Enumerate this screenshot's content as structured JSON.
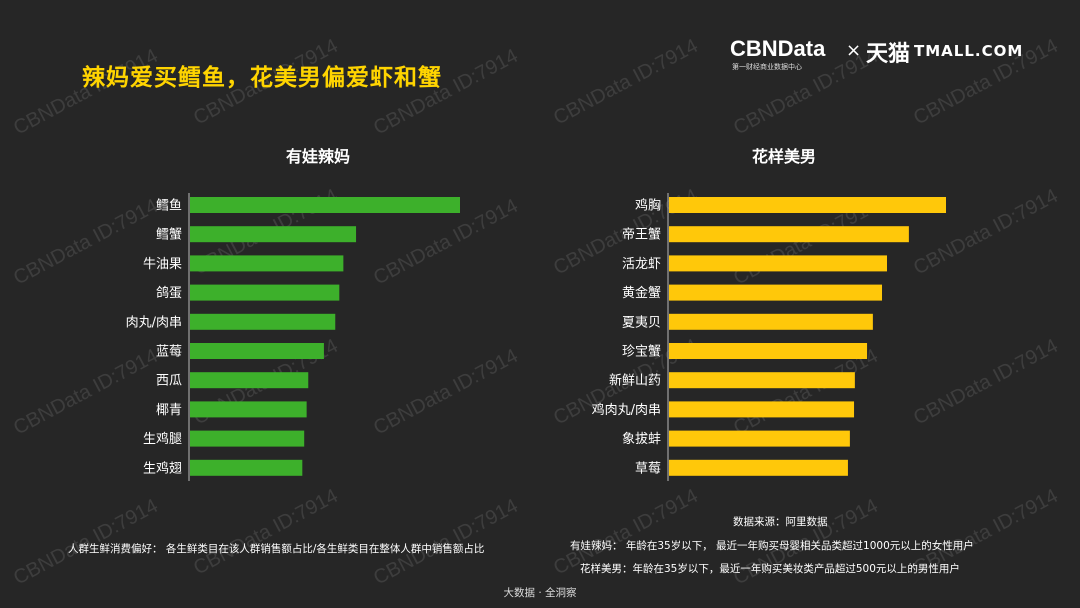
{
  "title": "辣妈爱买鳕鱼，花美男偏爱虾和蟹",
  "brand": {
    "cbn": "CBNData",
    "cbn_sub": "第一财经商业数据中心",
    "times": "×",
    "tmall_cn": "天猫",
    "tmall_en": "TMALL.COM"
  },
  "watermark_text": "CBNData ID:7914",
  "colors": {
    "mom_bar": "#3db02b",
    "man_bar": "#ffc80a",
    "background": "#262626",
    "title": "#ffd400"
  },
  "chart_data": [
    {
      "type": "bar",
      "orientation": "horizontal",
      "title": "有娃辣妈",
      "categories": [
        "鳕鱼",
        "鳕蟹",
        "牛油果",
        "鸽蛋",
        "肉丸/肉串",
        "蓝莓",
        "西瓜",
        "椰青",
        "生鸡腿",
        "生鸡翅"
      ],
      "values": [
        100,
        61.5,
        56.8,
        55.3,
        53.8,
        49.6,
        43.8,
        43.2,
        42.3,
        41.6
      ],
      "xlim": [
        0,
        100
      ],
      "grid": false,
      "legend": "none"
    },
    {
      "type": "bar",
      "orientation": "horizontal",
      "title": "花样美男",
      "categories": [
        "鸡胸",
        "帝王蟹",
        "活龙虾",
        "黄金蟹",
        "夏夷贝",
        "珍宝蟹",
        "新鲜山药",
        "鸡肉丸/肉串",
        "象拔蚌",
        "草莓"
      ],
      "values": [
        100,
        86.6,
        78.7,
        76.9,
        73.6,
        71.5,
        67.1,
        66.8,
        65.3,
        64.6
      ],
      "xlim": [
        0,
        100
      ],
      "grid": false,
      "legend": "none"
    }
  ],
  "notes": {
    "left": "人群生鲜消费偏好： 各生鲜类目在该人群销售额占比/各生鲜类目在整体人群中销售额占比",
    "source": "数据来源：阿里数据",
    "mom_def": "有娃辣妈：  年龄在35岁以下，  最近一年购买母婴相关品类超过1000元以上的女性用户",
    "man_def": "花样美男：年龄在35岁以下，最近一年购买美妆类产品超过500元以上的男性用户"
  },
  "footer": "大数据 · 全洞察"
}
